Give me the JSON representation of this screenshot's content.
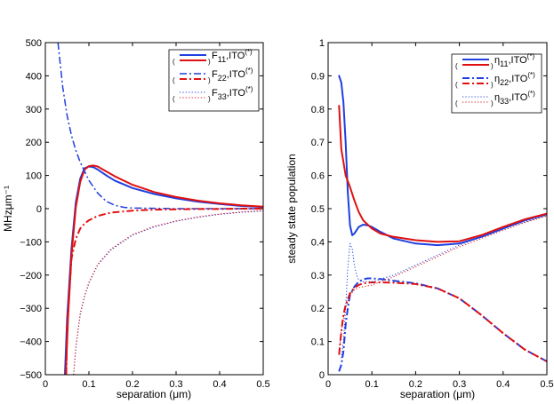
{
  "chart_data": [
    {
      "type": "line",
      "title": "",
      "xlabel": "separation (μm)",
      "ylabel": "MHzμm⁻¹",
      "xlim": [
        0,
        0.5
      ],
      "ylim": [
        -500,
        500
      ],
      "xticks": [
        0,
        0.1,
        0.2,
        0.3,
        0.4,
        0.5
      ],
      "xtick_labels": [
        "0",
        "0.1",
        "0.2",
        "0.3",
        "0.4",
        "0.5"
      ],
      "yticks": [
        -500,
        -400,
        -300,
        -200,
        -100,
        0,
        100,
        200,
        300,
        400,
        500
      ],
      "ytick_labels": [
        "−500",
        "−400",
        "−300",
        "−200",
        "−100",
        "0",
        "100",
        "200",
        "300",
        "400",
        "500"
      ],
      "legend_position": "top-right",
      "legend": [
        {
          "base": "F",
          "sub": "11",
          "suffix": ",ITO",
          "sup": "(*)"
        },
        {
          "base": "F",
          "sub": "22",
          "suffix": ",ITO",
          "sup": "(*)"
        },
        {
          "base": "F",
          "sub": "33",
          "suffix": ",ITO",
          "sup": "(*)"
        }
      ],
      "series": [
        {
          "name": "F11",
          "color": "#1f3fe0",
          "style": "solid",
          "width": 2,
          "x": [
            0.045,
            0.05,
            0.06,
            0.07,
            0.08,
            0.09,
            0.1,
            0.11,
            0.12,
            0.14,
            0.16,
            0.2,
            0.25,
            0.3,
            0.35,
            0.4,
            0.45,
            0.5
          ],
          "y": [
            -500,
            -330,
            -120,
            20,
            90,
            122,
            127,
            125,
            118,
            100,
            84,
            62,
            44,
            31,
            21,
            14,
            8,
            5
          ]
        },
        {
          "name": "ITO(*) F11",
          "color": "#e01010",
          "style": "solid",
          "width": 2,
          "x": [
            0.047,
            0.052,
            0.06,
            0.07,
            0.08,
            0.09,
            0.1,
            0.11,
            0.12,
            0.14,
            0.16,
            0.2,
            0.25,
            0.3,
            0.35,
            0.4,
            0.45,
            0.5
          ],
          "y": [
            -500,
            -330,
            -140,
            5,
            80,
            118,
            128,
            130,
            127,
            112,
            97,
            72,
            50,
            35,
            24,
            16,
            10,
            6
          ]
        },
        {
          "name": "F22",
          "color": "#1f3fe0",
          "style": "dashdot",
          "width": 1.5,
          "x": [
            0.029,
            0.035,
            0.04,
            0.05,
            0.06,
            0.07,
            0.08,
            0.1,
            0.12,
            0.14,
            0.16,
            0.18,
            0.2,
            0.25,
            0.3,
            0.4,
            0.5
          ],
          "y": [
            500,
            425,
            365,
            280,
            220,
            175,
            140,
            85,
            47,
            22,
            10,
            4,
            2,
            1,
            0,
            0,
            0
          ]
        },
        {
          "name": "ITO(*) F22",
          "color": "#e01010",
          "style": "dashdot",
          "width": 2,
          "x": [
            0.048,
            0.05,
            0.06,
            0.07,
            0.08,
            0.09,
            0.1,
            0.12,
            0.15,
            0.2,
            0.25,
            0.3,
            0.35,
            0.4,
            0.45,
            0.5
          ],
          "y": [
            -500,
            -350,
            -150,
            -90,
            -60,
            -45,
            -35,
            -22,
            -12,
            -6,
            -3,
            -2,
            -1,
            -1,
            0,
            0
          ]
        },
        {
          "name": "F33",
          "color": "#1f3fe0",
          "style": "dotted",
          "width": 1,
          "x": [
            0.065,
            0.07,
            0.08,
            0.09,
            0.1,
            0.12,
            0.15,
            0.2,
            0.25,
            0.3,
            0.35,
            0.4,
            0.45,
            0.5
          ],
          "y": [
            -500,
            -420,
            -320,
            -265,
            -225,
            -170,
            -125,
            -80,
            -55,
            -38,
            -26,
            -17,
            -11,
            -7
          ]
        },
        {
          "name": "ITO(*) F33",
          "color": "#e01010",
          "style": "dotted",
          "width": 1,
          "x": [
            0.065,
            0.07,
            0.08,
            0.09,
            0.1,
            0.12,
            0.15,
            0.2,
            0.25,
            0.3,
            0.35,
            0.4,
            0.45,
            0.5
          ],
          "y": [
            -500,
            -415,
            -315,
            -262,
            -222,
            -168,
            -122,
            -78,
            -53,
            -37,
            -25,
            -16,
            -10,
            -6
          ]
        }
      ]
    },
    {
      "type": "line",
      "title": "",
      "xlabel": "separation (μm)",
      "ylabel": "steady state population",
      "xlim": [
        0,
        0.5
      ],
      "ylim": [
        0,
        1
      ],
      "xticks": [
        0,
        0.1,
        0.2,
        0.3,
        0.4,
        0.5
      ],
      "xtick_labels": [
        "0",
        "0.1",
        "0.2",
        "0.3",
        "0.4",
        "0.5"
      ],
      "yticks": [
        0,
        0.1,
        0.2,
        0.3,
        0.4,
        0.5,
        0.6,
        0.7,
        0.8,
        0.9,
        1
      ],
      "ytick_labels": [
        "0",
        "0.1",
        "0.2",
        "0.3",
        "0.4",
        "0.5",
        "0.6",
        "0.7",
        "0.8",
        "0.9",
        "1"
      ],
      "legend_position": "top-right",
      "legend": [
        {
          "base": "η",
          "sub": "11",
          "suffix": ",ITO",
          "sup": "(*)"
        },
        {
          "base": "η",
          "sub": "22",
          "suffix": ",ITO",
          "sup": "(*)"
        },
        {
          "base": "η",
          "sub": "33",
          "suffix": ",ITO",
          "sup": "(*)"
        }
      ],
      "series": [
        {
          "name": "eta11",
          "color": "#1f3fe0",
          "style": "solid",
          "width": 2,
          "x": [
            0.025,
            0.03,
            0.035,
            0.04,
            0.045,
            0.05,
            0.055,
            0.06,
            0.07,
            0.08,
            0.09,
            0.1,
            0.12,
            0.15,
            0.2,
            0.25,
            0.3,
            0.35,
            0.4,
            0.45,
            0.5
          ],
          "y": [
            0.9,
            0.88,
            0.82,
            0.7,
            0.55,
            0.45,
            0.42,
            0.425,
            0.445,
            0.452,
            0.45,
            0.445,
            0.43,
            0.41,
            0.395,
            0.39,
            0.395,
            0.415,
            0.44,
            0.465,
            0.483
          ]
        },
        {
          "name": "ITO(*) eta11",
          "color": "#e01010",
          "style": "solid",
          "width": 2,
          "x": [
            0.025,
            0.03,
            0.04,
            0.05,
            0.06,
            0.07,
            0.08,
            0.1,
            0.12,
            0.15,
            0.2,
            0.25,
            0.3,
            0.35,
            0.4,
            0.45,
            0.5
          ],
          "y": [
            0.81,
            0.68,
            0.6,
            0.565,
            0.525,
            0.49,
            0.465,
            0.44,
            0.425,
            0.415,
            0.405,
            0.4,
            0.402,
            0.42,
            0.445,
            0.468,
            0.485
          ]
        },
        {
          "name": "eta22",
          "color": "#1f3fe0",
          "style": "dashdot",
          "width": 2,
          "x": [
            0.025,
            0.03,
            0.035,
            0.04,
            0.045,
            0.05,
            0.06,
            0.07,
            0.08,
            0.09,
            0.1,
            0.12,
            0.15,
            0.2,
            0.25,
            0.3,
            0.35,
            0.4,
            0.45,
            0.5
          ],
          "y": [
            0.01,
            0.03,
            0.07,
            0.15,
            0.2,
            0.24,
            0.265,
            0.28,
            0.287,
            0.29,
            0.29,
            0.288,
            0.283,
            0.275,
            0.26,
            0.23,
            0.18,
            0.125,
            0.075,
            0.04
          ]
        },
        {
          "name": "ITO(*) eta22",
          "color": "#e01010",
          "style": "dashdot",
          "width": 2,
          "x": [
            0.025,
            0.03,
            0.035,
            0.04,
            0.05,
            0.06,
            0.07,
            0.08,
            0.1,
            0.12,
            0.15,
            0.2,
            0.25,
            0.3,
            0.35,
            0.4,
            0.45,
            0.5
          ],
          "y": [
            0.06,
            0.13,
            0.18,
            0.21,
            0.245,
            0.262,
            0.27,
            0.275,
            0.278,
            0.278,
            0.277,
            0.273,
            0.26,
            0.23,
            0.18,
            0.125,
            0.075,
            0.04
          ]
        },
        {
          "name": "eta33",
          "color": "#1f3fe0",
          "style": "dotted",
          "width": 1,
          "x": [
            0.03,
            0.035,
            0.04,
            0.045,
            0.05,
            0.055,
            0.06,
            0.065,
            0.07,
            0.08,
            0.1,
            0.15,
            0.2,
            0.25,
            0.3,
            0.35,
            0.4,
            0.45,
            0.5
          ],
          "y": [
            0.05,
            0.1,
            0.2,
            0.32,
            0.395,
            0.38,
            0.33,
            0.3,
            0.285,
            0.28,
            0.28,
            0.3,
            0.33,
            0.36,
            0.39,
            0.415,
            0.44,
            0.46,
            0.48
          ]
        },
        {
          "name": "ITO(*) eta33",
          "color": "#e01010",
          "style": "dotted",
          "width": 1,
          "x": [
            0.025,
            0.03,
            0.04,
            0.05,
            0.06,
            0.07,
            0.08,
            0.1,
            0.15,
            0.2,
            0.25,
            0.3,
            0.35,
            0.4,
            0.45,
            0.5
          ],
          "y": [
            0.07,
            0.13,
            0.2,
            0.24,
            0.255,
            0.262,
            0.265,
            0.27,
            0.295,
            0.325,
            0.355,
            0.385,
            0.41,
            0.435,
            0.458,
            0.478
          ]
        }
      ]
    }
  ]
}
